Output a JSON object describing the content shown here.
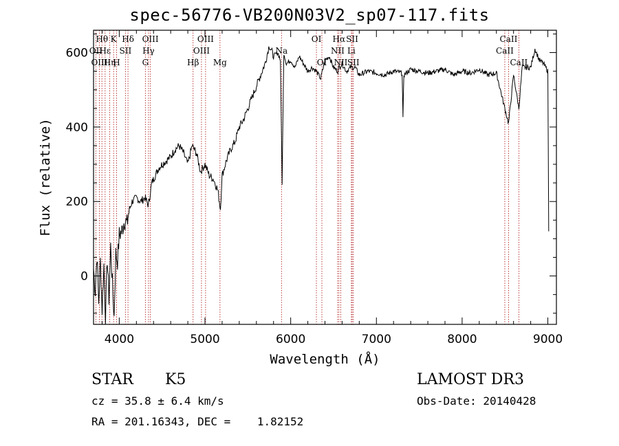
{
  "chart_data": {
    "type": "line",
    "title": "spec-56776-VB200N03V2_sp07-117.fits",
    "xlabel": "Wavelength (Å)",
    "ylabel": "Flux (relative)",
    "xlim": [
      3700,
      9100
    ],
    "ylim": [
      -130,
      660
    ],
    "xticks": [
      4000,
      5000,
      6000,
      7000,
      8000,
      9000
    ],
    "yticks": [
      0,
      200,
      400,
      600
    ],
    "series": [
      {
        "name": "flux",
        "x": [
          3700,
          3720,
          3740,
          3760,
          3780,
          3800,
          3820,
          3840,
          3860,
          3880,
          3900,
          3920,
          3940,
          3960,
          3980,
          4000,
          4030,
          4060,
          4090,
          4120,
          4150,
          4200,
          4250,
          4300,
          4340,
          4380,
          4420,
          4460,
          4500,
          4550,
          4600,
          4650,
          4700,
          4750,
          4800,
          4850,
          4900,
          4950,
          5000,
          5050,
          5100,
          5150,
          5180,
          5200,
          5250,
          5300,
          5350,
          5400,
          5450,
          5500,
          5550,
          5600,
          5650,
          5700,
          5750,
          5800,
          5850,
          5880,
          5900,
          5920,
          5950,
          6000,
          6050,
          6100,
          6150,
          6200,
          6250,
          6300,
          6350,
          6400,
          6450,
          6500,
          6550,
          6563,
          6600,
          6650,
          6700,
          6750,
          6800,
          6900,
          7000,
          7100,
          7200,
          7300,
          7310,
          7320,
          7400,
          7500,
          7600,
          7700,
          7800,
          7900,
          8000,
          8100,
          8200,
          8300,
          8400,
          8498,
          8542,
          8600,
          8662,
          8700,
          8800,
          8850,
          8900,
          8950,
          9000,
          9010
        ],
        "values": [
          20,
          -40,
          60,
          -70,
          40,
          -90,
          30,
          -110,
          50,
          -60,
          80,
          -20,
          -110,
          60,
          40,
          110,
          120,
          150,
          140,
          180,
          200,
          210,
          200,
          210,
          190,
          250,
          270,
          290,
          300,
          310,
          320,
          340,
          350,
          330,
          300,
          350,
          330,
          280,
          300,
          270,
          260,
          230,
          180,
          270,
          310,
          340,
          360,
          400,
          420,
          450,
          480,
          510,
          540,
          570,
          620,
          590,
          600,
          580,
          250,
          600,
          570,
          580,
          560,
          590,
          570,
          550,
          560,
          550,
          530,
          580,
          590,
          560,
          550,
          560,
          570,
          550,
          560,
          560,
          540,
          550,
          545,
          540,
          550,
          545,
          420,
          540,
          555,
          550,
          545,
          550,
          555,
          540,
          550,
          545,
          555,
          540,
          545,
          450,
          410,
          540,
          450,
          560,
          560,
          610,
          580,
          570,
          550,
          120
        ]
      }
    ],
    "emission_lines": [
      {
        "label": "Hθ",
        "x": 3798,
        "row": 0
      },
      {
        "label": "OII",
        "x": 3727,
        "row": 1
      },
      {
        "label": "OIII",
        "x": 3768,
        "row": 2
      },
      {
        "label": "Hε",
        "x": 3835,
        "row": 1
      },
      {
        "label": "K",
        "x": 3934,
        "row": 0
      },
      {
        "label": "Hη",
        "x": 3889,
        "row": 2
      },
      {
        "label": "SII",
        "x": 4072,
        "row": 1
      },
      {
        "label": "H",
        "x": 3969,
        "row": 2
      },
      {
        "label": "Hδ",
        "x": 4102,
        "row": 0
      },
      {
        "label": "OIII",
        "x": 4363,
        "row": 0
      },
      {
        "label": "Hγ",
        "x": 4341,
        "row": 1
      },
      {
        "label": "G",
        "x": 4305,
        "row": 2
      },
      {
        "label": "OIII",
        "x": 5007,
        "row": 0
      },
      {
        "label": "OIII",
        "x": 4959,
        "row": 1
      },
      {
        "label": "Hβ",
        "x": 4861,
        "row": 2
      },
      {
        "label": "Mg",
        "x": 5175,
        "row": 2
      },
      {
        "label": "Na",
        "x": 5893,
        "row": 1
      },
      {
        "label": "OI",
        "x": 6300,
        "row": 0
      },
      {
        "label": "OI",
        "x": 6364,
        "row": 2
      },
      {
        "label": "Hα",
        "x": 6563,
        "row": 0
      },
      {
        "label": "NII",
        "x": 6548,
        "row": 1
      },
      {
        "label": "NII",
        "x": 6584,
        "row": 2
      },
      {
        "label": "SII",
        "x": 6717,
        "row": 0
      },
      {
        "label": "Li",
        "x": 6708,
        "row": 1
      },
      {
        "label": "SII",
        "x": 6731,
        "row": 2
      },
      {
        "label": "CaII",
        "x": 8542,
        "row": 0
      },
      {
        "label": "CaII",
        "x": 8498,
        "row": 1
      },
      {
        "label": "CaII",
        "x": 8662,
        "row": 2
      }
    ]
  },
  "info": {
    "object_class": "STAR",
    "subclass": "K5",
    "survey": "LAMOST DR3",
    "redshift": "cz = 35.8 ± 6.4 km/s",
    "obs_date": "Obs-Date: 20140428",
    "coords": "RA = 201.16343, DEC =    1.82152"
  }
}
